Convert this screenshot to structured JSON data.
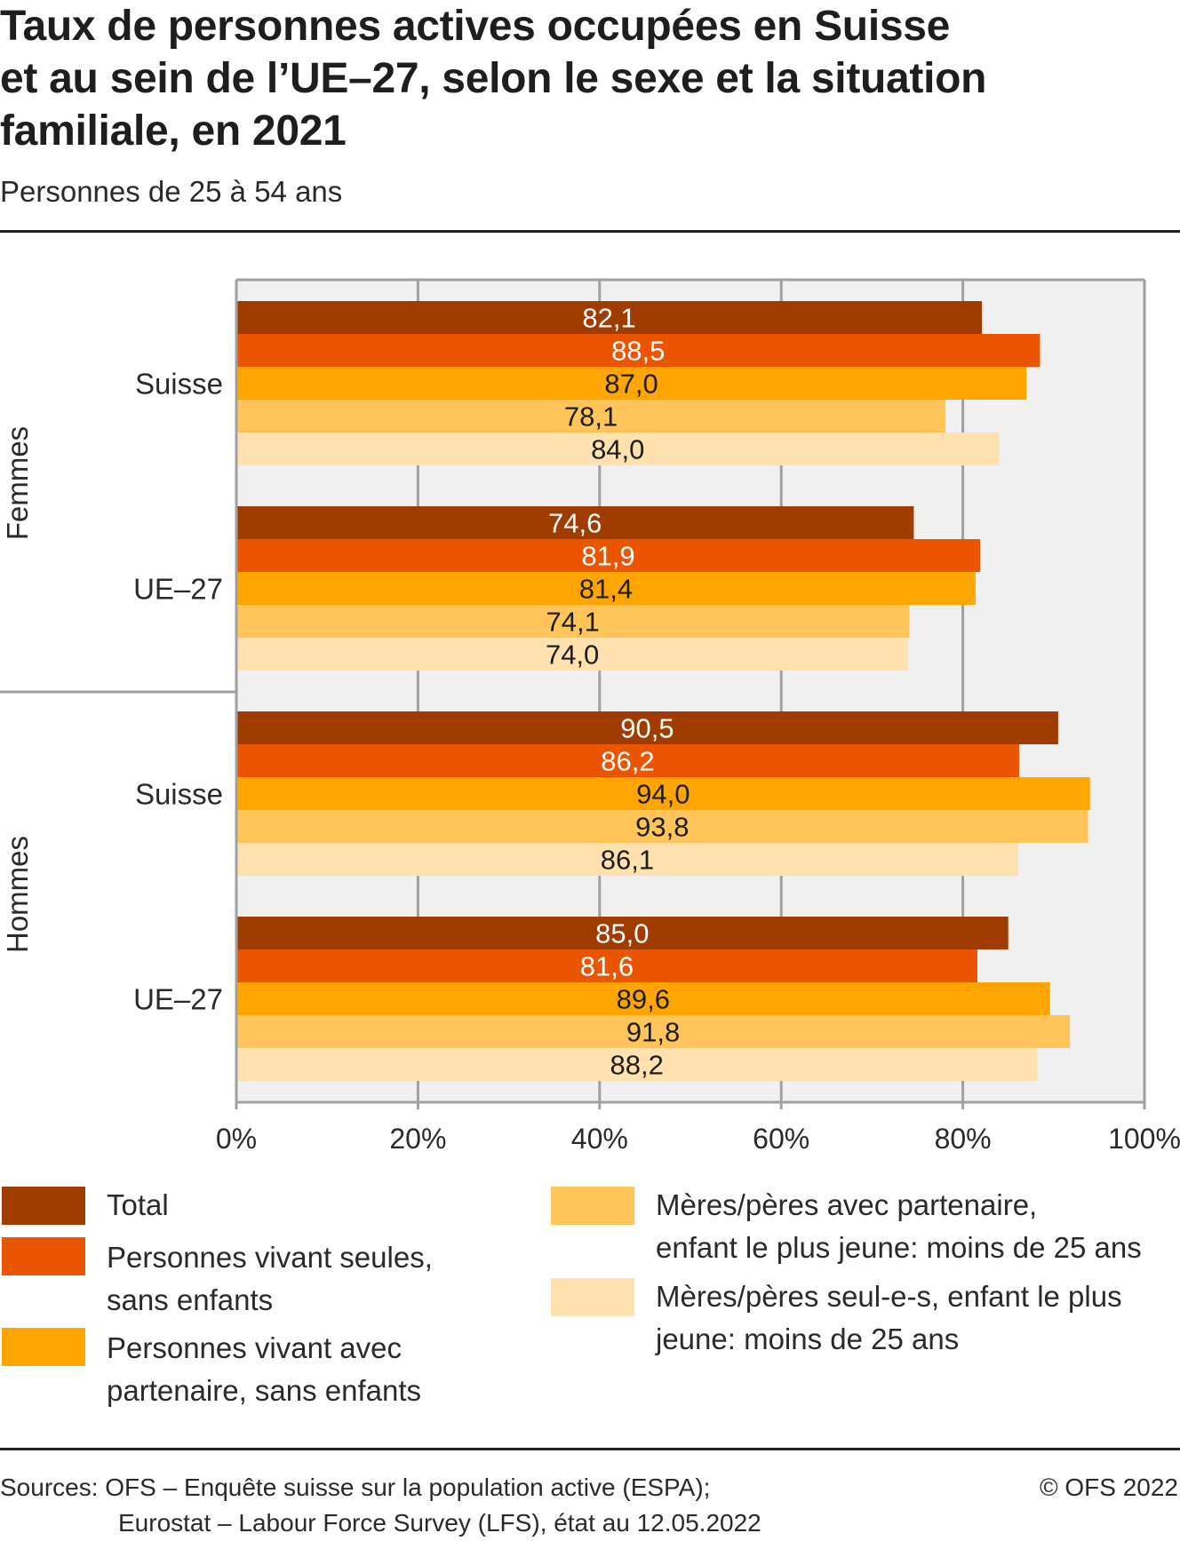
{
  "header": {
    "title_lines": [
      "Taux de personnes actives occupées en Suisse",
      "et au sein de l’UE–27, selon le sexe et la situation",
      "familiale, en 2021"
    ],
    "subtitle": "Personnes de 25 à 54 ans"
  },
  "chart_data": {
    "type": "bar",
    "orientation": "horizontal",
    "title": "Taux de personnes actives occupées en Suisse et au sein de l’UE–27, selon le sexe et la situation familiale, en 2021",
    "subtitle": "Personnes de 25 à 54 ans",
    "xlabel": "",
    "ylabel": "",
    "xlim": [
      0,
      100
    ],
    "x_ticks": [
      0,
      20,
      40,
      60,
      80,
      100
    ],
    "x_tick_labels": [
      "0%",
      "20%",
      "40%",
      "60%",
      "80%",
      "100%"
    ],
    "grid": true,
    "legend_position": "bottom",
    "outer_groups": [
      "Femmes",
      "Hommes"
    ],
    "categories": [
      "Suisse",
      "UE–27"
    ],
    "groups": [
      {
        "sex": "Femmes",
        "region": "Suisse",
        "values": [
          82.1,
          88.5,
          87.0,
          78.1,
          84.0
        ],
        "labels": [
          "82,1",
          "88,5",
          "87,0",
          "78,1",
          "84,0"
        ]
      },
      {
        "sex": "Femmes",
        "region": "UE–27",
        "values": [
          74.6,
          81.9,
          81.4,
          74.1,
          74.0
        ],
        "labels": [
          "74,6",
          "81,9",
          "81,4",
          "74,1",
          "74,0"
        ]
      },
      {
        "sex": "Hommes",
        "region": "Suisse",
        "values": [
          90.5,
          86.2,
          94.0,
          93.8,
          86.1
        ],
        "labels": [
          "90,5",
          "86,2",
          "94,0",
          "93,8",
          "86,1"
        ]
      },
      {
        "sex": "Hommes",
        "region": "UE–27",
        "values": [
          85.0,
          81.6,
          89.6,
          91.8,
          88.2
        ],
        "labels": [
          "85,0",
          "81,6",
          "89,6",
          "91,8",
          "88,2"
        ]
      }
    ],
    "series": [
      {
        "name": "Total",
        "color": "#A03C00",
        "label_color": "#ffffff"
      },
      {
        "name": "Personnes vivant seules, sans enfants",
        "color": "#EB5500",
        "label_color": "#ffffff"
      },
      {
        "name": "Personnes vivant avec partenaire, sans enfants",
        "color": "#FFA500",
        "label_color": "#1e1e1e"
      },
      {
        "name": "Mères/pères avec partenaire, enfant le plus jeune: moins de 25 ans",
        "color": "#FFC55A",
        "label_color": "#1e1e1e"
      },
      {
        "name": "Mères/pères seul-e-s, enfant le plus jeune: moins de 25 ans",
        "color": "#FFE1B0",
        "label_color": "#1e1e1e"
      }
    ],
    "plot_background": "#F0F0F0",
    "grid_color": "#A0A0A0"
  },
  "legend": {
    "items": [
      {
        "lines": [
          "Total"
        ],
        "color": "#A03C00"
      },
      {
        "lines": [
          "Personnes vivant seules,",
          "sans enfants"
        ],
        "color": "#EB5500"
      },
      {
        "lines": [
          "Personnes vivant avec",
          "partenaire, sans enfants"
        ],
        "color": "#FFA500"
      },
      {
        "lines": [
          "Mères/pères avec partenaire,",
          "enfant le plus jeune: moins de 25 ans"
        ],
        "color": "#FFC55A"
      },
      {
        "lines": [
          "Mères/pères seul-e-s, enfant le plus",
          "jeune: moins de 25 ans"
        ],
        "color": "#FFE1B0"
      }
    ]
  },
  "footer": {
    "sources_line1": "Sources: OFS – Enquête suisse sur la population active (ESPA);",
    "sources_line2": "Eurostat – Labour Force Survey (LFS), état au 12.05.2022",
    "copyright": "© OFS 2022"
  }
}
